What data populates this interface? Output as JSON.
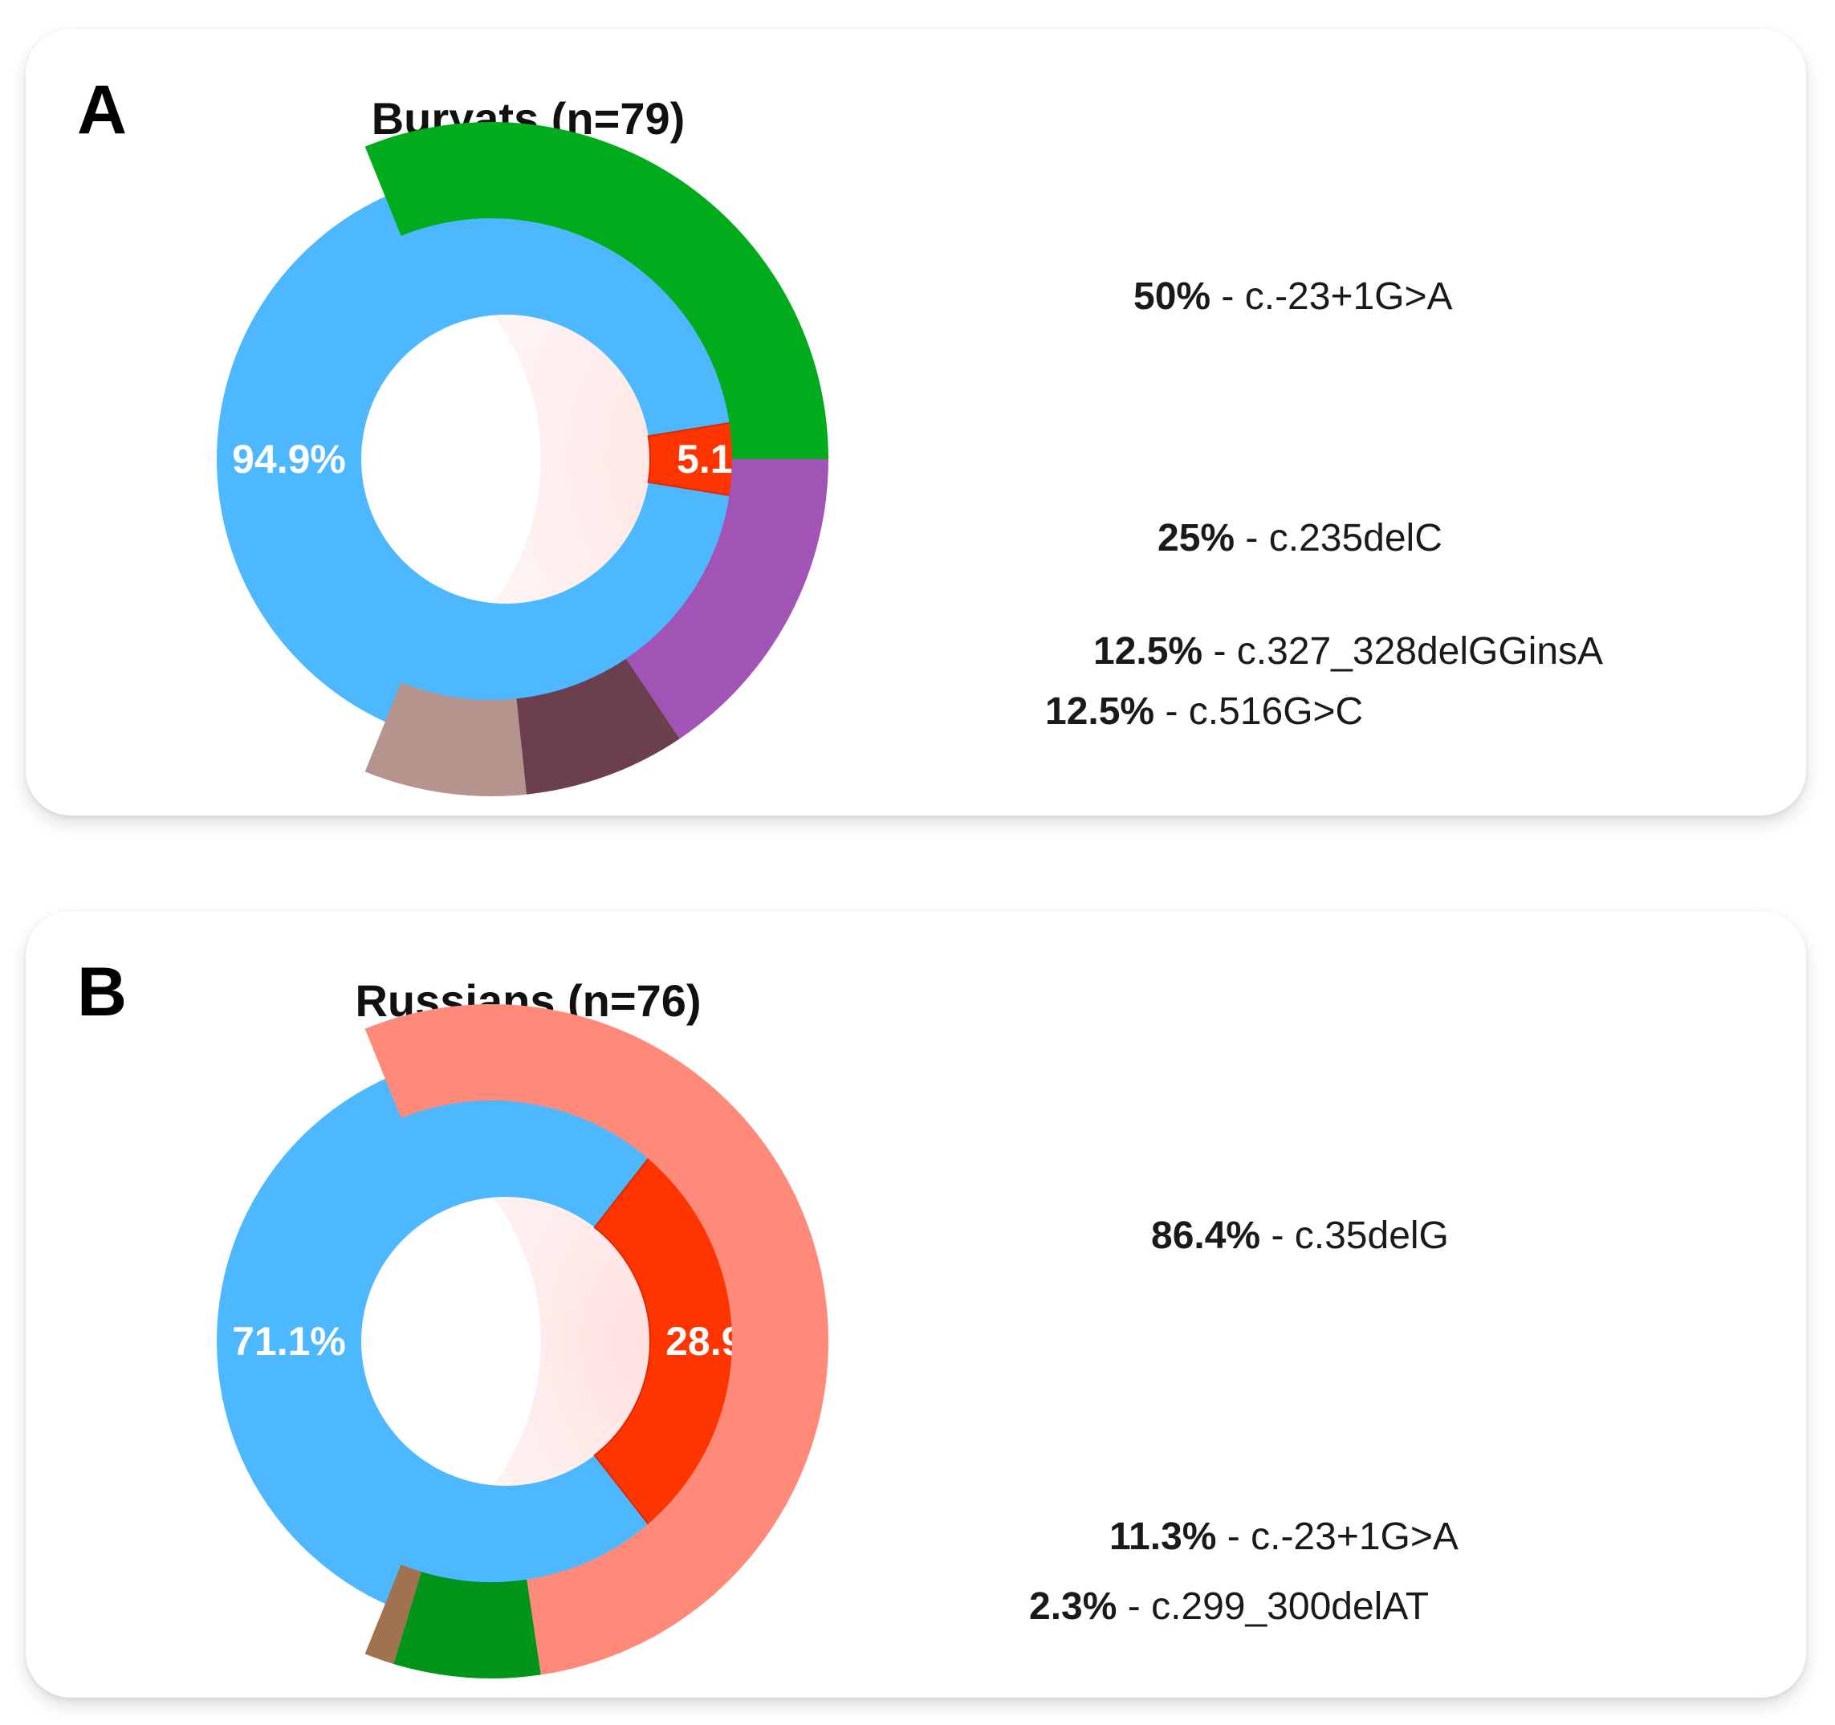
{
  "panels": [
    {
      "letter": "A",
      "title": "Buryats (n=79)"
    },
    {
      "letter": "B",
      "title": "Russians (n=76)"
    }
  ],
  "chart_data": [
    {
      "type": "pie",
      "subtype": "donut-with-breakdown-arc",
      "title": "Buryats (n=79)",
      "slices": [
        {
          "label": "94.9%",
          "value": 94.9,
          "color": "#4db8ff"
        },
        {
          "label": "5.1%",
          "value": 5.1,
          "color": "#ff3500"
        }
      ],
      "breakdown": {
        "of_slice": "5.1%",
        "segments": [
          {
            "pct": "50%",
            "variant": "c.-23+1G>A",
            "value": 50,
            "color": "#00ab1c"
          },
          {
            "pct": "25%",
            "variant": "c.235delC",
            "value": 25,
            "color": "#a154b5"
          },
          {
            "pct": "12.5%",
            "variant": "c.327_328delGGinsA",
            "value": 12.5,
            "color": "#6b3f4e"
          },
          {
            "pct": "12.5%",
            "variant": "c.516G>C",
            "value": 12.5,
            "color": "#b5948e"
          }
        ]
      }
    },
    {
      "type": "pie",
      "subtype": "donut-with-breakdown-arc",
      "title": "Russians (n=76)",
      "slices": [
        {
          "label": "71.1%",
          "value": 71.1,
          "color": "#4db8ff"
        },
        {
          "label": "28.9%",
          "value": 28.9,
          "color": "#ff3500"
        }
      ],
      "breakdown": {
        "of_slice": "28.9%",
        "segments": [
          {
            "pct": "86.4%",
            "variant": "c.35delG",
            "value": 86.4,
            "color": "#ff8a7a"
          },
          {
            "pct": "11.3%",
            "variant": "c.-23+1G>A",
            "value": 11.3,
            "color": "#009418"
          },
          {
            "pct": "2.3%",
            "variant": "c.299_300delAT",
            "value": 2.3,
            "color": "#a0724f"
          }
        ]
      }
    }
  ]
}
